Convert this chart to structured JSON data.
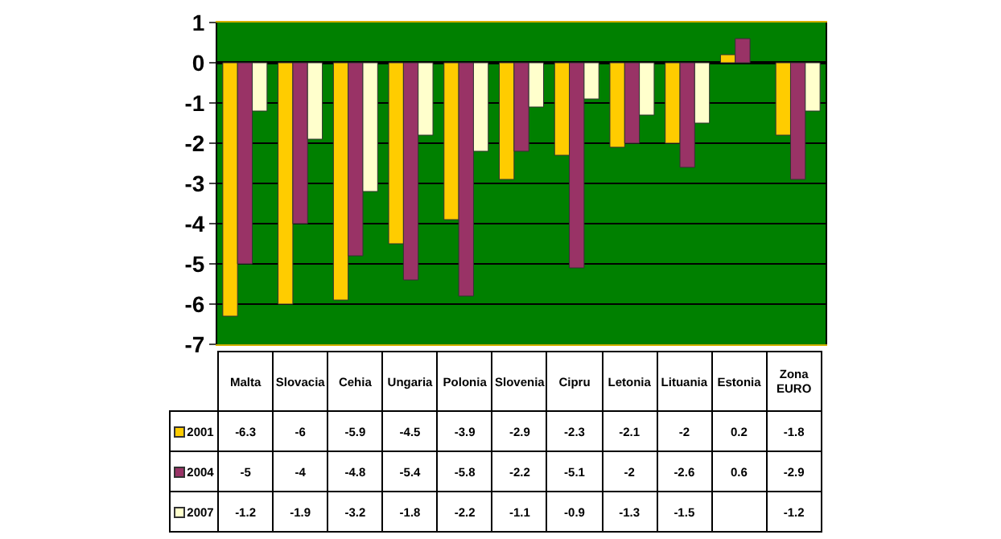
{
  "chart_data": {
    "type": "bar",
    "categories": [
      "Malta",
      "Slovacia",
      "Cehia",
      "Ungaria",
      "Polonia",
      "Slovenia",
      "Cipru",
      "Letonia",
      "Lituania",
      "Estonia",
      "Zona EURO"
    ],
    "series": [
      {
        "name": "2001",
        "color": "#ffcc00",
        "values": [
          -6.3,
          -6,
          -5.9,
          -4.5,
          -3.9,
          -2.9,
          -2.3,
          -2.1,
          -2,
          0.2,
          -1.8
        ]
      },
      {
        "name": "2004",
        "color": "#993366",
        "values": [
          -5,
          -4,
          -4.8,
          -5.4,
          -5.8,
          -2.2,
          -5.1,
          -2,
          -2.6,
          0.6,
          -2.9
        ]
      },
      {
        "name": "2007",
        "color": "#ffffcc",
        "values": [
          -1.2,
          -1.9,
          -3.2,
          -1.8,
          -2.2,
          -1.1,
          -0.9,
          -1.3,
          -1.5,
          null,
          -1.2
        ]
      }
    ],
    "ylim": [
      -7,
      1
    ],
    "yticks": [
      -7,
      -6,
      -5,
      -4,
      -3,
      -2,
      -1,
      0,
      1
    ],
    "grid": "y",
    "data_labels": true,
    "legend": "bottom left"
  }
}
